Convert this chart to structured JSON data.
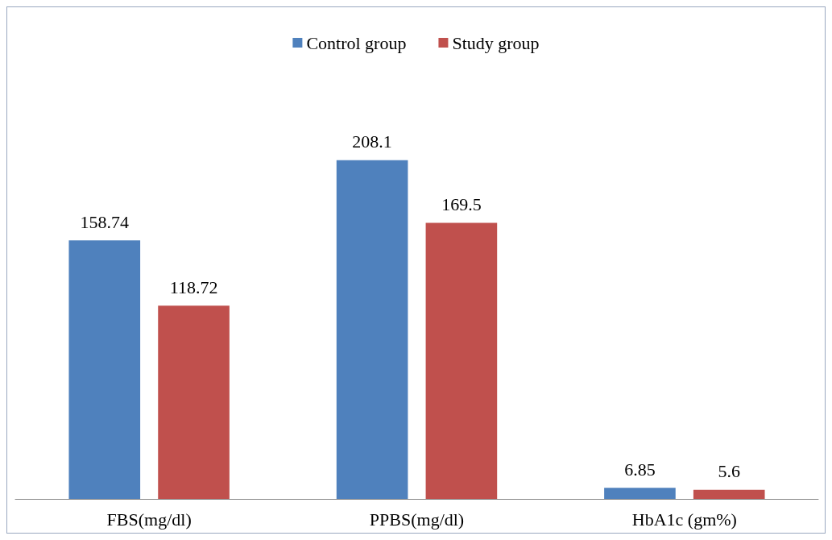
{
  "chart_data": {
    "type": "bar",
    "categories": [
      "FBS(mg/dl)",
      "PPBS(mg/dl)",
      "HbA1c (gm%)"
    ],
    "series": [
      {
        "name": "Control group",
        "color": "#4f81bd",
        "values": [
          158.74,
          208.1,
          6.85
        ]
      },
      {
        "name": "Study group",
        "color": "#c0504d",
        "values": [
          118.72,
          169.5,
          5.6
        ]
      }
    ],
    "data_labels": true,
    "legend": "top",
    "grid": false
  }
}
